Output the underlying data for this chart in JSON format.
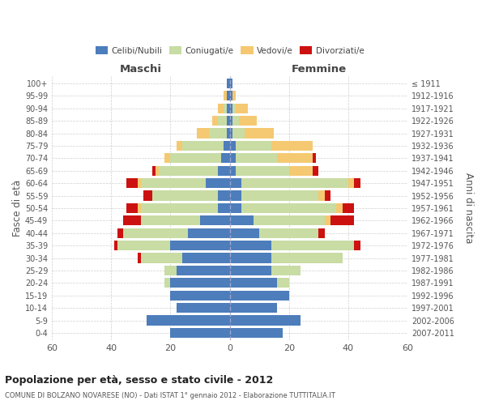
{
  "age_groups": [
    "0-4",
    "5-9",
    "10-14",
    "15-19",
    "20-24",
    "25-29",
    "30-34",
    "35-39",
    "40-44",
    "45-49",
    "50-54",
    "55-59",
    "60-64",
    "65-69",
    "70-74",
    "75-79",
    "80-84",
    "85-89",
    "90-94",
    "95-99",
    "100+"
  ],
  "birth_years": [
    "2007-2011",
    "2002-2006",
    "1997-2001",
    "1992-1996",
    "1987-1991",
    "1982-1986",
    "1977-1981",
    "1972-1976",
    "1967-1971",
    "1962-1966",
    "1957-1961",
    "1952-1956",
    "1947-1951",
    "1942-1946",
    "1937-1941",
    "1932-1936",
    "1927-1931",
    "1922-1926",
    "1917-1921",
    "1912-1916",
    "≤ 1911"
  ],
  "maschi": {
    "celibi": [
      20,
      28,
      18,
      20,
      20,
      18,
      16,
      20,
      14,
      10,
      4,
      4,
      8,
      4,
      3,
      2,
      1,
      1,
      1,
      1,
      1
    ],
    "coniugati": [
      0,
      0,
      0,
      0,
      2,
      4,
      14,
      18,
      22,
      20,
      26,
      22,
      22,
      20,
      17,
      14,
      6,
      3,
      1,
      0,
      0
    ],
    "vedovi": [
      0,
      0,
      0,
      0,
      0,
      0,
      0,
      0,
      0,
      0,
      1,
      0,
      1,
      1,
      2,
      2,
      4,
      2,
      2,
      1,
      0
    ],
    "divorziati": [
      0,
      0,
      0,
      0,
      0,
      0,
      1,
      1,
      2,
      6,
      4,
      3,
      4,
      1,
      0,
      0,
      0,
      0,
      0,
      0,
      0
    ]
  },
  "femmine": {
    "nubili": [
      18,
      24,
      16,
      20,
      16,
      14,
      14,
      14,
      10,
      8,
      4,
      4,
      4,
      2,
      2,
      2,
      1,
      1,
      1,
      1,
      1
    ],
    "coniugate": [
      0,
      0,
      0,
      0,
      4,
      10,
      24,
      28,
      20,
      24,
      32,
      26,
      36,
      18,
      14,
      12,
      4,
      2,
      1,
      0,
      0
    ],
    "vedove": [
      0,
      0,
      0,
      0,
      0,
      0,
      0,
      0,
      0,
      2,
      2,
      2,
      2,
      8,
      12,
      14,
      10,
      6,
      4,
      1,
      0
    ],
    "divorziate": [
      0,
      0,
      0,
      0,
      0,
      0,
      0,
      2,
      2,
      8,
      4,
      2,
      2,
      2,
      1,
      0,
      0,
      0,
      0,
      0,
      0
    ]
  },
  "colors": {
    "celibi_nubili": "#4d7dbb",
    "coniugati": "#c8dca4",
    "vedovi": "#f5c971",
    "divorziati": "#cc1111"
  },
  "xlim": [
    -60,
    60
  ],
  "xticks": [
    -60,
    -40,
    -20,
    0,
    20,
    40,
    60
  ],
  "xticklabels": [
    "60",
    "40",
    "20",
    "0",
    "20",
    "40",
    "60"
  ],
  "title": "Popolazione per età, sesso e stato civile - 2012",
  "subtitle": "COMUNE DI BOLZANO NOVARESE (NO) - Dati ISTAT 1° gennaio 2012 - Elaborazione TUTTITALIA.IT",
  "ylabel_left": "Fasce di età",
  "ylabel_right": "Anni di nascita",
  "label_maschi": "Maschi",
  "label_femmine": "Femmine",
  "legend_labels": [
    "Celibi/Nubili",
    "Coniugati/e",
    "Vedovi/e",
    "Divorziati/e"
  ],
  "bg_color": "#ffffff",
  "grid_color": "#bbbbbb"
}
